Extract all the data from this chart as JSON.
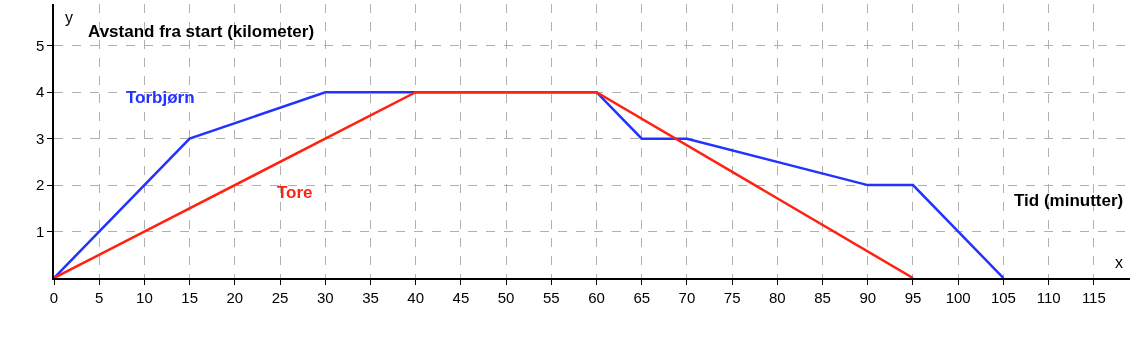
{
  "chart_data": {
    "type": "line",
    "xlabel": "x",
    "ylabel": "y",
    "annotations": [
      "Avstand fra start (kilometer)",
      "Tid (minutter)"
    ],
    "series": [
      {
        "name": "Torbjørn",
        "color": "#2233ff",
        "x": [
          0,
          15,
          30,
          60,
          65,
          70,
          90,
          95,
          105
        ],
        "values": [
          0,
          3,
          4,
          4,
          3,
          3,
          2,
          2,
          0
        ]
      },
      {
        "name": "Tore",
        "color": "#ff2211",
        "x": [
          0,
          40,
          60,
          95
        ],
        "values": [
          0,
          4,
          4,
          0
        ]
      }
    ],
    "xlim": [
      0,
      119
    ],
    "ylim": [
      0,
      5.9
    ],
    "xticks": [
      0,
      5,
      10,
      15,
      20,
      25,
      30,
      35,
      40,
      45,
      50,
      55,
      60,
      65,
      70,
      75,
      80,
      85,
      90,
      95,
      100,
      105,
      110,
      115
    ],
    "yticks": [
      1,
      2,
      3,
      4,
      5
    ],
    "grid": true,
    "legend": false,
    "line_style": "solid",
    "marker": "none"
  }
}
